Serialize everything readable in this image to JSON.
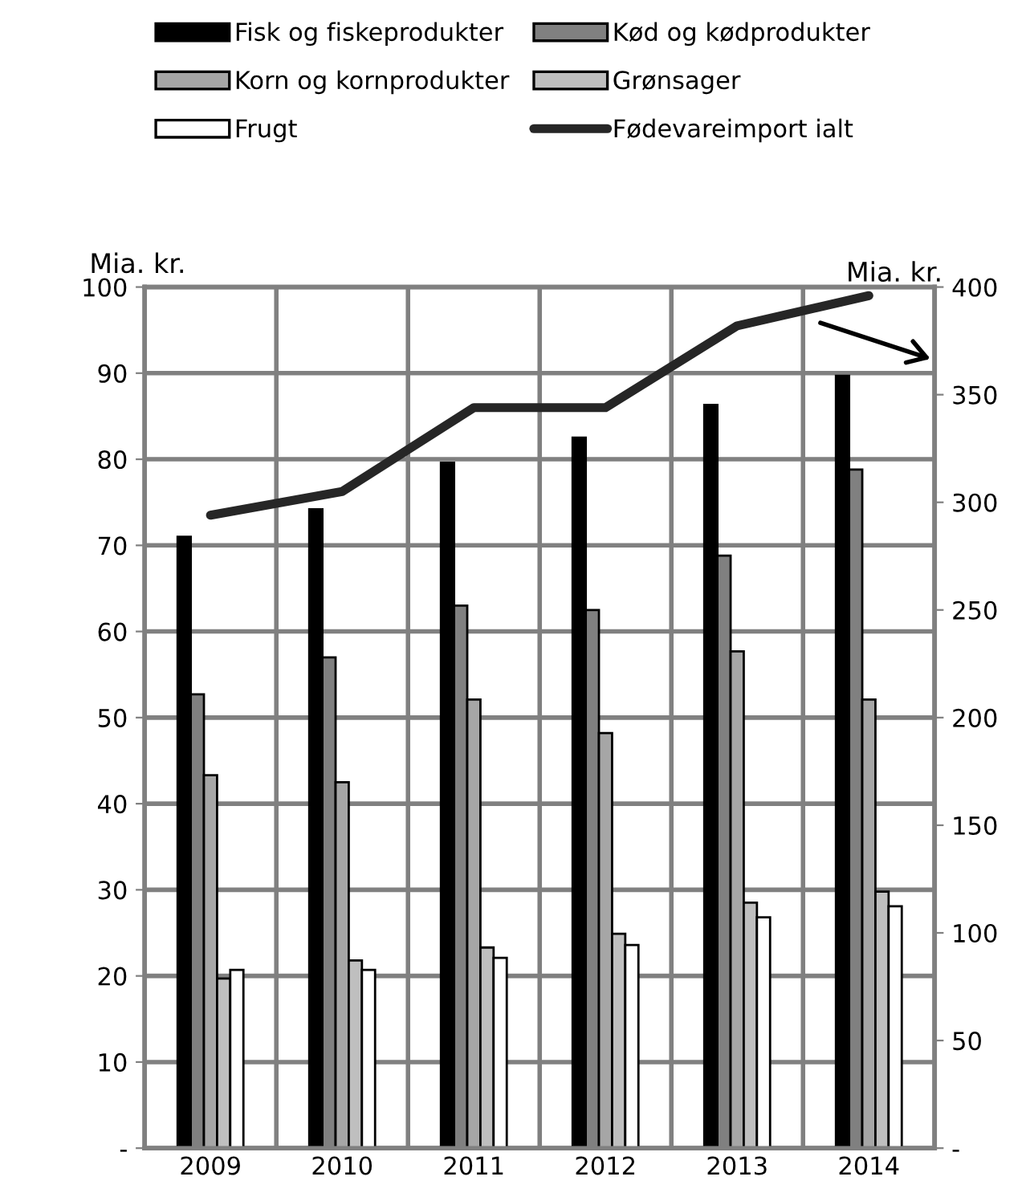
{
  "chart_data": {
    "type": "bar",
    "ylabel": "Mia. kr.",
    "y2label": "Mia. kr.",
    "categories": [
      "2009",
      "2010",
      "2011",
      "2012",
      "2013",
      "2014"
    ],
    "series": [
      {
        "name": "Fisk og fiskeprodukter",
        "color": "#000000",
        "values": [
          71.0,
          74.2,
          79.6,
          82.5,
          86.3,
          89.7
        ]
      },
      {
        "name": "Kød og kødprodukter",
        "color": "#808080",
        "values": [
          52.7,
          57.0,
          63.0,
          62.5,
          68.8,
          78.8
        ]
      },
      {
        "name": "Korn og kornprodukter",
        "color": "#a6a6a6",
        "values": [
          43.3,
          42.5,
          52.1,
          48.2,
          57.7,
          52.1
        ]
      },
      {
        "name": "Grønsager",
        "color": "#bfbfbf",
        "values": [
          19.7,
          21.8,
          23.3,
          24.9,
          28.5,
          29.8
        ]
      },
      {
        "name": "Frugt",
        "color": "#ffffff",
        "values": [
          20.7,
          20.7,
          22.1,
          23.6,
          26.8,
          28.1
        ]
      },
      {
        "name": "Fødevareimport ialt",
        "color": "#262626",
        "type": "line",
        "axis": "y2",
        "values": [
          294,
          305,
          344,
          344,
          382,
          396
        ]
      }
    ],
    "ylim": [
      0,
      100
    ],
    "yticks": [
      {
        "value": 0,
        "label": "-"
      },
      10,
      20,
      30,
      40,
      50,
      60,
      70,
      80,
      90,
      100
    ],
    "y2lim": [
      0,
      400
    ],
    "y2ticks": [
      {
        "value": 0,
        "label": "-"
      },
      50,
      100,
      150,
      200,
      250,
      300,
      350,
      400
    ],
    "grid": true,
    "legend": "top",
    "marker": "none",
    "line_style": "solid"
  }
}
